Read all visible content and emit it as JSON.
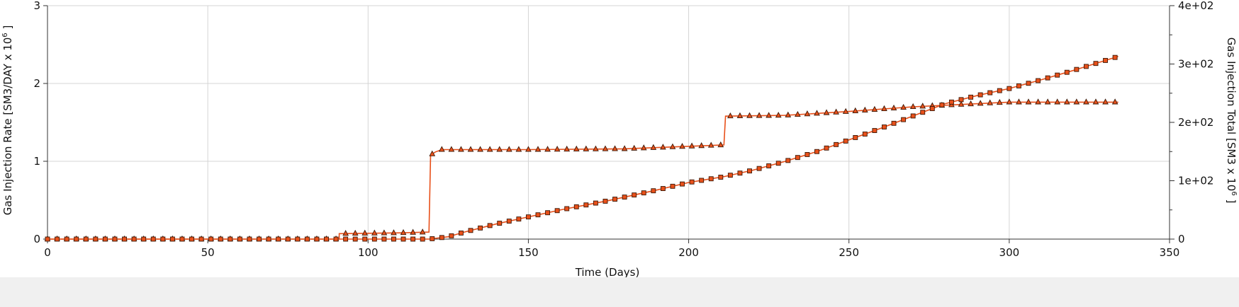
{
  "chart_data": {
    "type": "line",
    "title": "",
    "xlabel": "Time (Days)",
    "ylabel_left": "Gas Injection Rate [SM3/DAY x 10",
    "ylabel_left_exp": "6",
    "ylabel_left_suffix": " ]",
    "ylabel_right": "Gas Injection Total [SM3 x 10",
    "ylabel_right_exp": "6",
    "ylabel_right_suffix": " ]",
    "xlim": [
      0,
      350
    ],
    "ylim_left": [
      0,
      3
    ],
    "ylim_right": [
      0,
      400
    ],
    "x_ticks": [
      0,
      50,
      100,
      150,
      200,
      250,
      300,
      350
    ],
    "x_tick_labels": [
      "0",
      "50",
      "100",
      "150",
      "200",
      "250",
      "300",
      "350"
    ],
    "y_left_ticks": [
      0,
      1,
      2,
      3
    ],
    "y_left_tick_labels": [
      "0",
      "1",
      "2",
      "3"
    ],
    "y_right_ticks": [
      0,
      100,
      200,
      300,
      400
    ],
    "y_right_tick_labels": [
      "0",
      "1e+02",
      "2e+02",
      "3e+02",
      "4e+02"
    ],
    "y_right_minor_ticks": [
      50,
      150,
      250,
      350
    ],
    "grid": true,
    "colors": {
      "line": "#e8501a",
      "marker_fill": "#e8501a",
      "marker_edge": "#3a1a0a"
    },
    "series": [
      {
        "axis": "left",
        "marker": "triangle",
        "points": [
          [
            0,
            0
          ],
          [
            91,
            0
          ],
          [
            91,
            0.07
          ],
          [
            110,
            0.08
          ],
          [
            119,
            0.09
          ],
          [
            119.5,
            1.08
          ],
          [
            121,
            1.12
          ],
          [
            123,
            1.15
          ],
          [
            150,
            1.15
          ],
          [
            180,
            1.16
          ],
          [
            211,
            1.21
          ],
          [
            211.5,
            1.58
          ],
          [
            230,
            1.59
          ],
          [
            250,
            1.64
          ],
          [
            270,
            1.7
          ],
          [
            285,
            1.73
          ],
          [
            300,
            1.76
          ],
          [
            334,
            1.76
          ]
        ]
      },
      {
        "axis": "right",
        "marker": "square",
        "points": [
          [
            0,
            0
          ],
          [
            100,
            0
          ],
          [
            119,
            0
          ],
          [
            125,
            4
          ],
          [
            130,
            12
          ],
          [
            140,
            26
          ],
          [
            150,
            38
          ],
          [
            160,
            50
          ],
          [
            175,
            66
          ],
          [
            190,
            84
          ],
          [
            200,
            97
          ],
          [
            211,
            107
          ],
          [
            220,
            118
          ],
          [
            230,
            133
          ],
          [
            240,
            150
          ],
          [
            250,
            170
          ],
          [
            260,
            190
          ],
          [
            270,
            211
          ],
          [
            280,
            232
          ],
          [
            290,
            246
          ],
          [
            300,
            258
          ],
          [
            310,
            273
          ],
          [
            320,
            289
          ],
          [
            334,
            313
          ]
        ]
      }
    ]
  }
}
